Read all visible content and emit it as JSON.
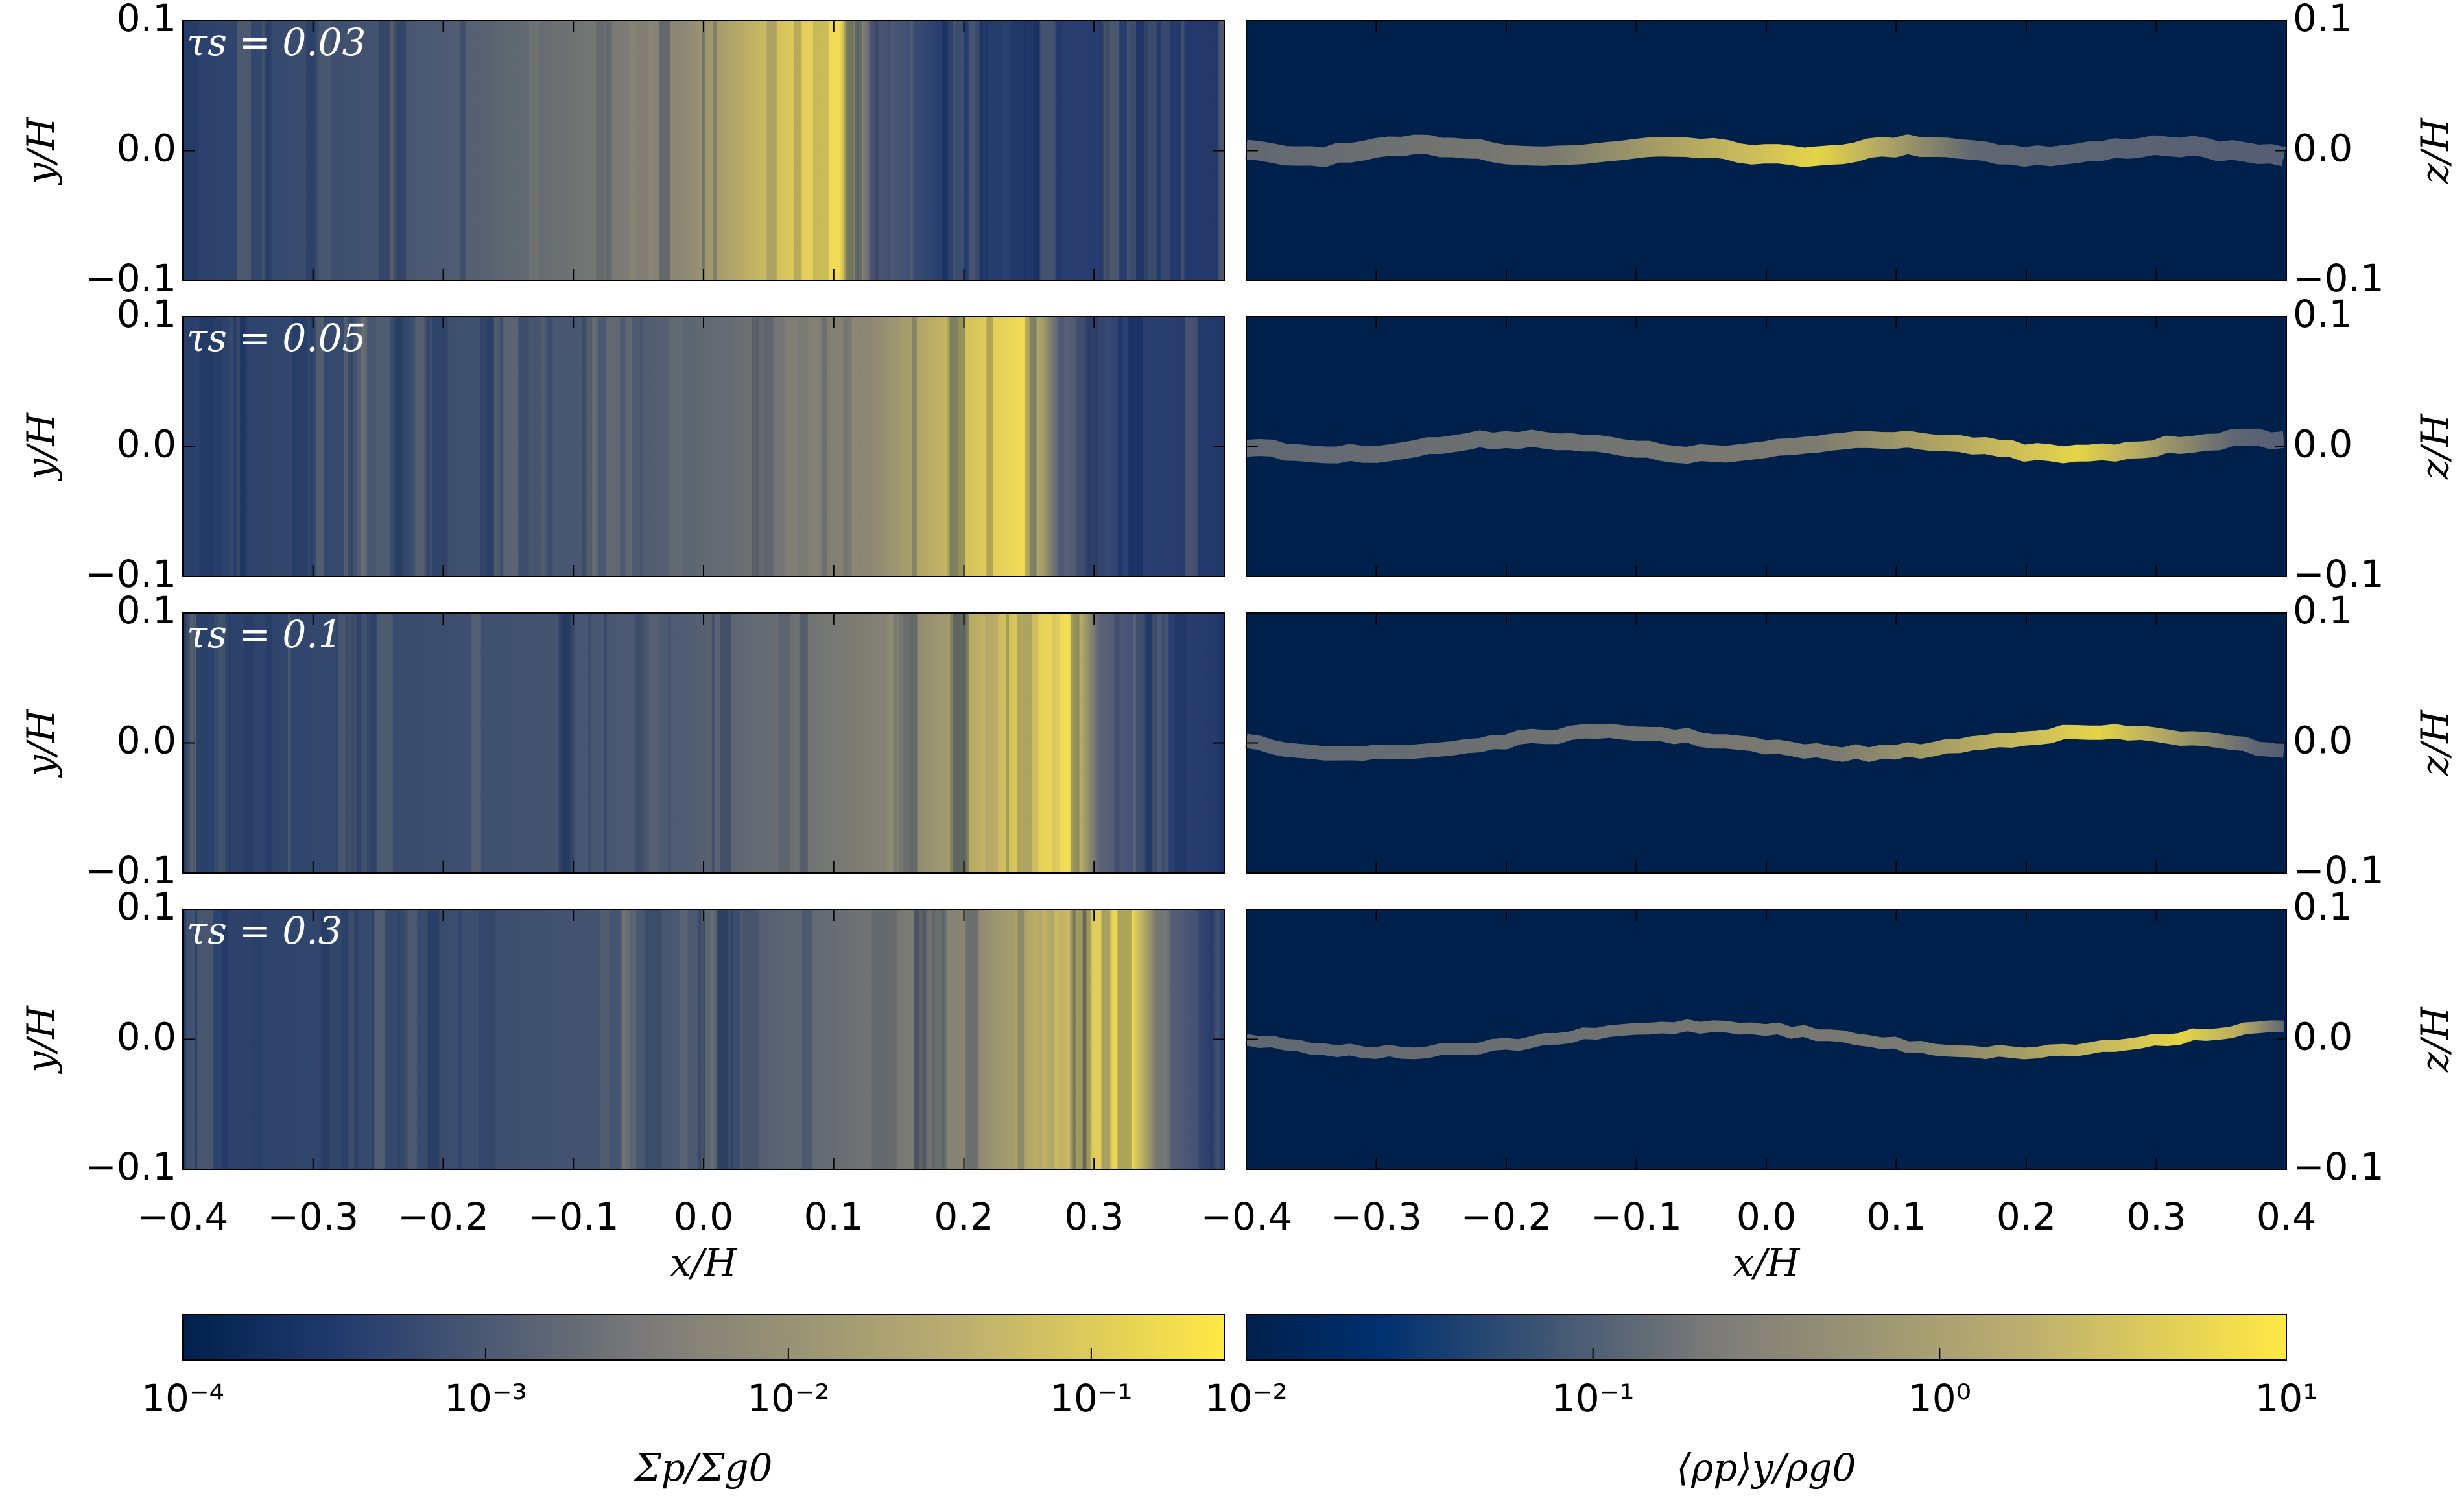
{
  "chart_data": {
    "type": "heatmap-grid",
    "panels": [
      "τs = 0.03",
      "τs = 0.05",
      "τs = 0.1",
      "τs = 0.3"
    ],
    "xlabel": "x/H",
    "left_ylabel": "y/H",
    "right_ylabel": "z/H",
    "xlim": [
      -0.4,
      0.4
    ],
    "xticks": [
      {
        "value": -0.4,
        "label": "−0.4"
      },
      {
        "value": -0.3,
        "label": "−0.3"
      },
      {
        "value": -0.2,
        "label": "−0.2"
      },
      {
        "value": -0.1,
        "label": "−0.1"
      },
      {
        "value": 0,
        "label": "0.0"
      },
      0.1,
      0.2,
      0.3,
      0.4
    ],
    "ylim": [
      -0.1,
      0.1
    ],
    "yticks": [
      {
        "value": -0.1,
        "label": "−0.1"
      },
      {
        "value": 0,
        "label": "0.0"
      },
      0.1
    ],
    "colorbars": [
      {
        "label": "Σp/Σg0",
        "scale": "log",
        "lim": [
          0.0001,
          0.275
        ],
        "ticks": [
          {
            "value": 0.0001,
            "label": "10⁻⁴"
          },
          {
            "value": 0.001,
            "label": "10⁻³"
          },
          {
            "value": 0.01,
            "label": "10⁻²"
          },
          {
            "value": 0.1,
            "label": "10⁻¹"
          }
        ]
      },
      {
        "label": "⟨ρp⟩y/ρg0",
        "scale": "log",
        "lim": [
          0.01,
          10
        ],
        "ticks": [
          {
            "value": 0.01,
            "label": "10⁻²"
          },
          {
            "value": 0.1,
            "label": "10⁻¹"
          },
          {
            "value": 1,
            "label": "10⁰"
          },
          {
            "value": 10,
            "label": "10¹"
          }
        ]
      }
    ]
  }
}
